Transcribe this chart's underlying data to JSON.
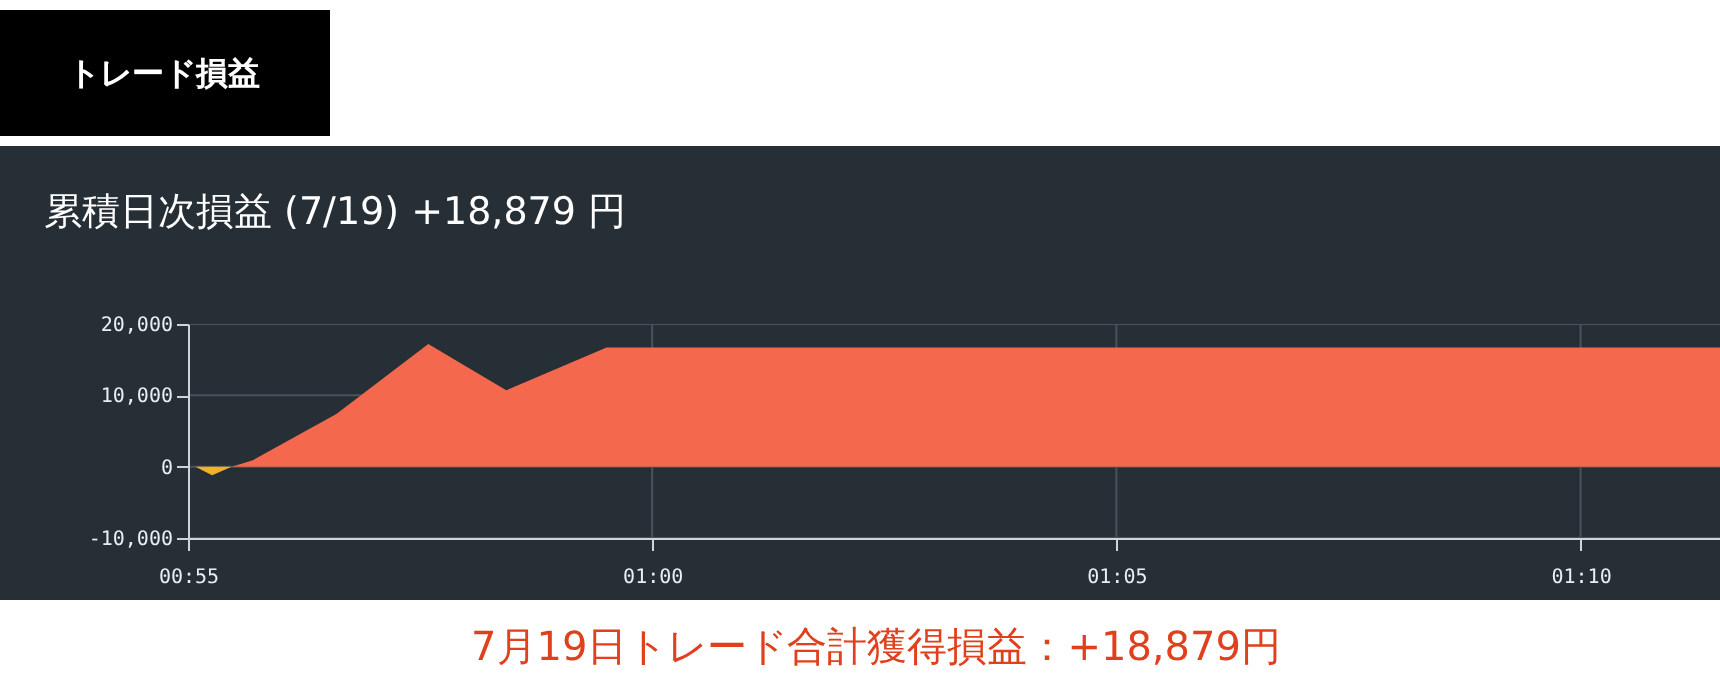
{
  "chart_data": {
    "type": "area",
    "title": "累積日次損益 (7/19) +18,879 円",
    "annotations": [
      "トレード損益",
      "7月19日トレード合計獲得損益：+18,879円"
    ],
    "series": [
      {
        "color": "#f5b02a",
        "x": [
          0.918,
          0.921,
          0.9245
        ],
        "values": [
          0,
          -1200,
          0
        ]
      },
      {
        "color": "#f4694d",
        "x": [
          0.9245,
          0.9283,
          0.9433,
          0.9598,
          0.9738,
          0.9918,
          1.1917
        ],
        "values": [
          0,
          900,
          7400,
          17200,
          10700,
          16700,
          16700
        ]
      }
    ],
    "xlim": [
      0.916667,
      1.1917
    ],
    "xticks": [
      {
        "value": 0.916667,
        "label": "00:55"
      },
      {
        "value": 1,
        "label": "01:00"
      },
      {
        "value": 1.083333,
        "label": "01:05"
      },
      {
        "value": 1.166667,
        "label": "01:10"
      }
    ],
    "ylim": [
      -10000,
      20000
    ],
    "yticks": [
      {
        "value": -10000,
        "label": "-10,000"
      },
      0,
      {
        "value": 10000,
        "label": "10,000"
      },
      {
        "value": 20000,
        "label": "20,000"
      }
    ],
    "grid": true
  }
}
